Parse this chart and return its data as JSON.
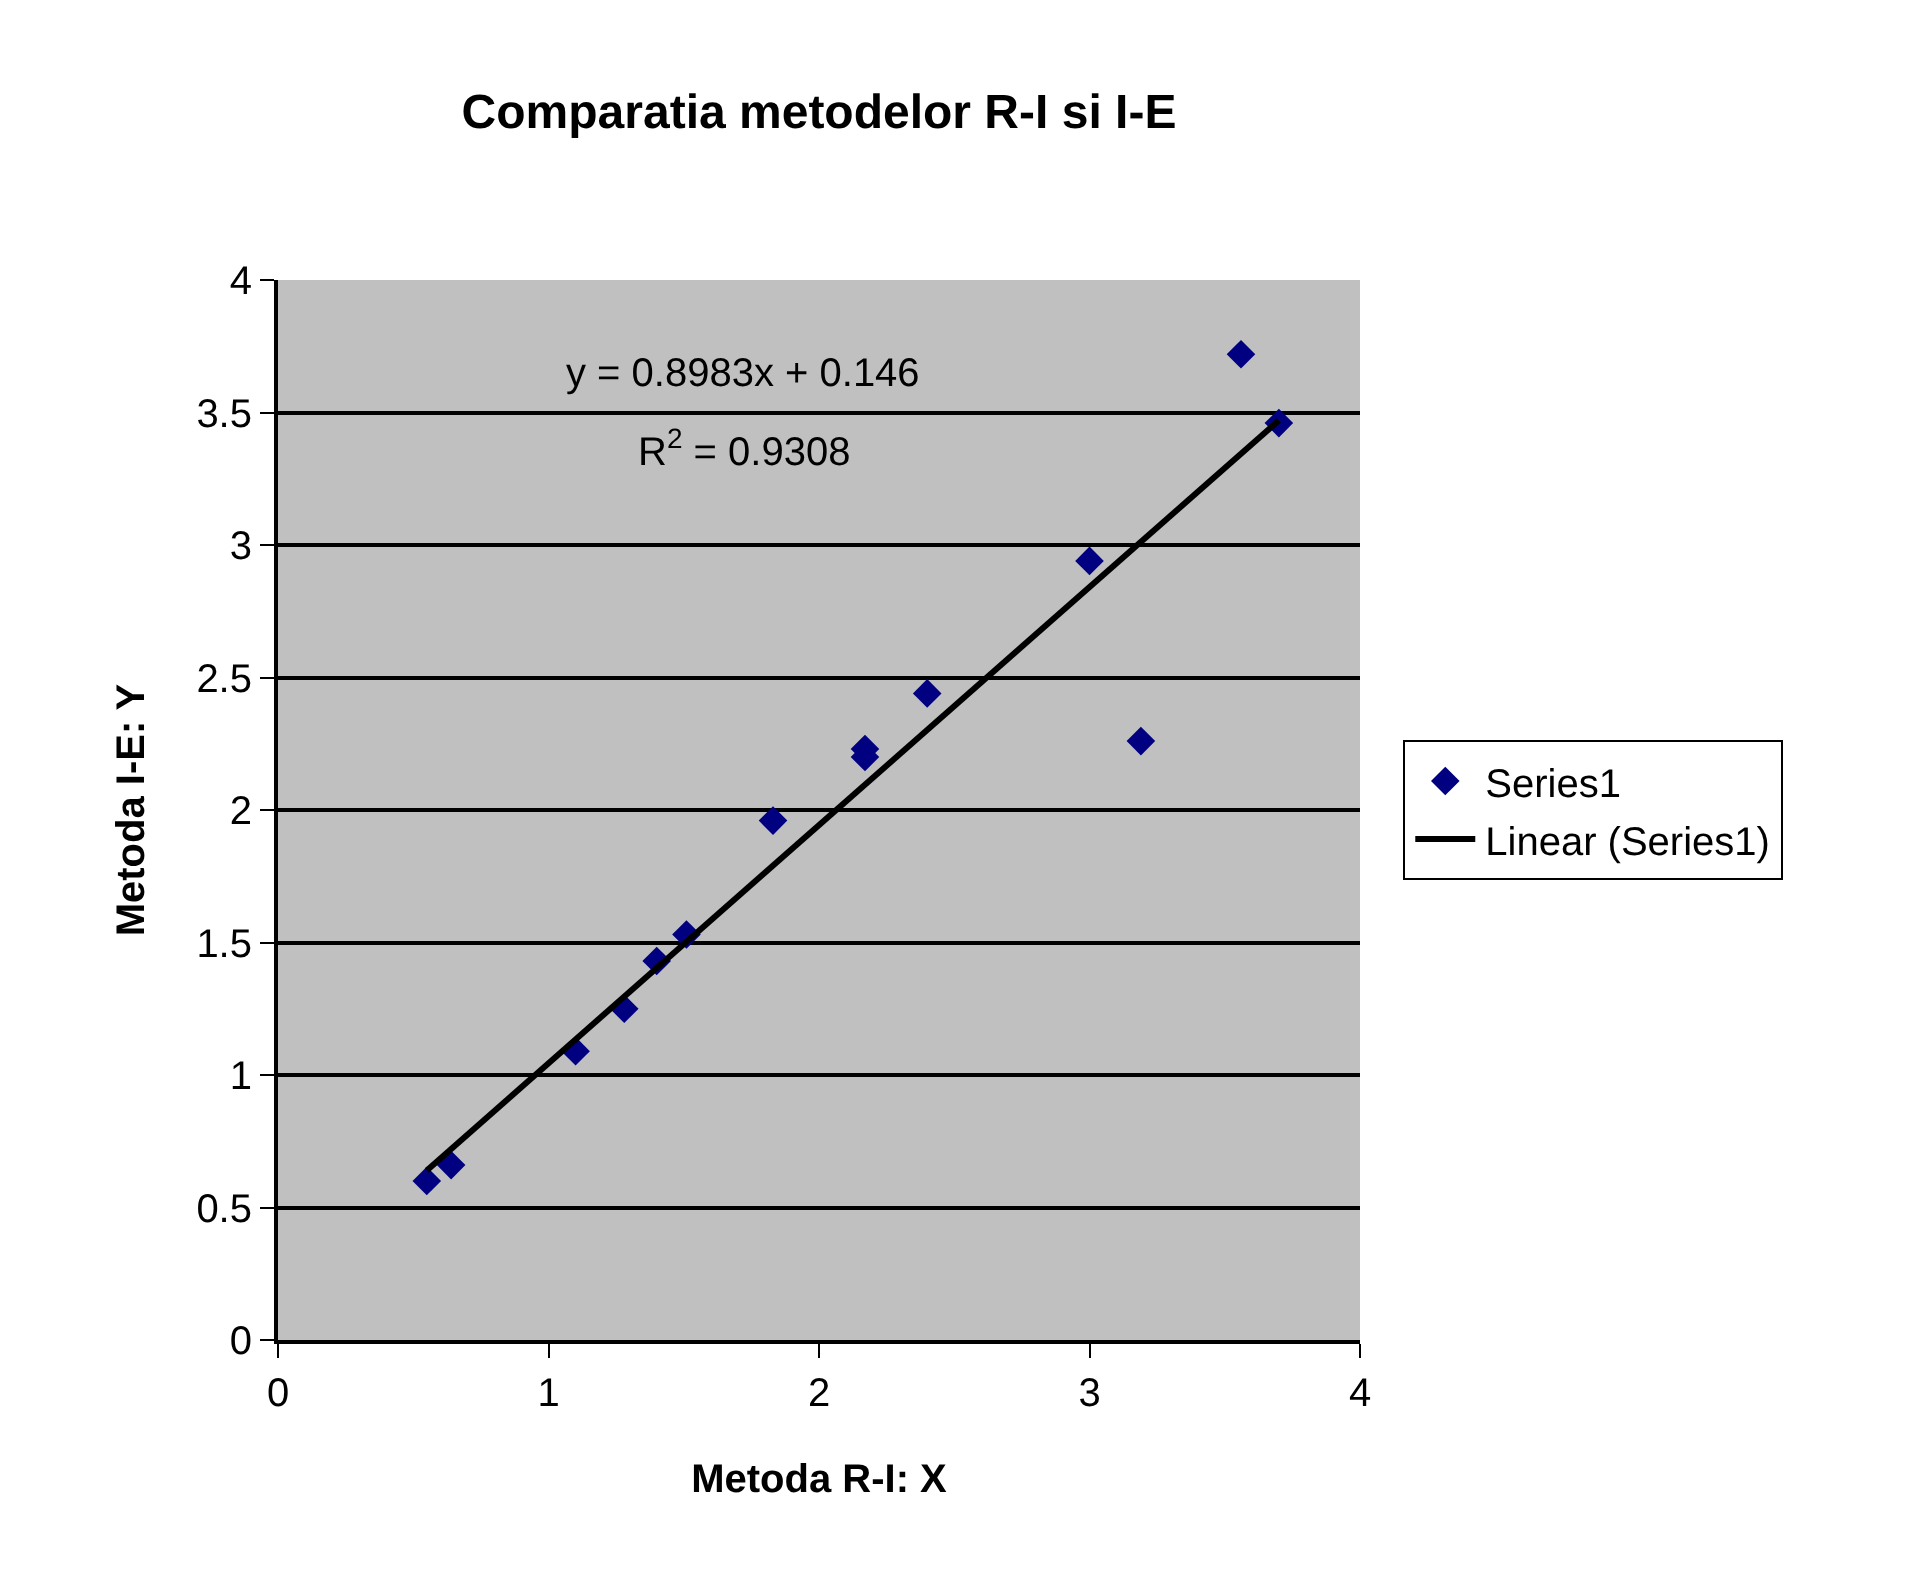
{
  "chart_data": {
    "type": "scatter",
    "title": "Comparatia metodelor R-I si I-E",
    "xlabel": "Metoda R-I: X",
    "ylabel": "Metoda I-E: Y",
    "annotations": [
      "y = 0.8983x + 0.146",
      "R$^{2}$ = 0.9308"
    ],
    "series": [
      {
        "name": "Series1",
        "color": "#000080",
        "marker": "diamond",
        "x": [
          0.55,
          0.64,
          1.1,
          1.28,
          1.4,
          1.51,
          1.83,
          2.17,
          2.17,
          2.4,
          3.0,
          3.19,
          3.56,
          3.7
        ],
        "values": [
          0.6,
          0.66,
          1.09,
          1.25,
          1.43,
          1.53,
          1.96,
          2.23,
          2.2,
          2.44,
          2.94,
          2.26,
          3.72,
          3.46
        ]
      },
      {
        "name": "Linear (Series1)",
        "type": "line",
        "color": "#000000",
        "line_style": "solid",
        "x": [
          0.55,
          3.7
        ],
        "values": [
          0.64,
          3.47
        ]
      }
    ],
    "xlim": [
      0,
      4
    ],
    "xticks": [
      0,
      1,
      2,
      3,
      4
    ],
    "ylim": [
      0,
      4
    ],
    "yticks": [
      0,
      0.5,
      1,
      1.5,
      2,
      2.5,
      3,
      3.5,
      4
    ],
    "grid": "y",
    "legend": "right"
  }
}
